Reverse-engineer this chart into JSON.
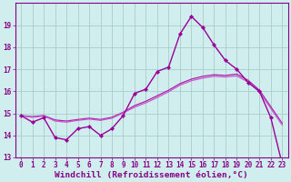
{
  "line1": {
    "x": [
      0,
      1,
      2,
      3,
      4,
      5,
      6,
      7,
      8,
      9,
      10,
      11,
      12,
      13,
      14,
      15,
      16,
      17,
      18,
      19,
      20,
      21,
      22,
      23
    ],
    "y": [
      14.9,
      14.6,
      14.8,
      13.9,
      13.8,
      14.3,
      14.4,
      14.0,
      14.3,
      14.9,
      15.9,
      16.1,
      16.9,
      17.1,
      18.6,
      19.4,
      18.9,
      18.1,
      17.4,
      17.0,
      16.4,
      16.0,
      14.8,
      12.7
    ],
    "color": "#990099",
    "lw": 1.0,
    "marker": "D",
    "ms": 2.2
  },
  "line2": {
    "x": [
      0,
      1,
      2,
      3,
      4,
      5,
      6,
      7,
      8,
      9,
      10,
      11,
      12,
      13,
      14,
      15,
      16,
      17,
      18,
      19,
      20,
      21,
      22,
      23
    ],
    "y": [
      14.9,
      14.85,
      14.9,
      14.7,
      14.65,
      14.72,
      14.78,
      14.72,
      14.82,
      15.05,
      15.35,
      15.55,
      15.8,
      16.05,
      16.35,
      16.55,
      16.68,
      16.75,
      16.72,
      16.78,
      16.5,
      16.05,
      15.3,
      14.55
    ],
    "color": "#aa22aa",
    "lw": 0.9
  },
  "line3": {
    "x": [
      0,
      1,
      2,
      3,
      4,
      5,
      6,
      7,
      8,
      9,
      10,
      11,
      12,
      13,
      14,
      15,
      16,
      17,
      18,
      19,
      20,
      21,
      22,
      23
    ],
    "y": [
      14.9,
      14.82,
      14.88,
      14.65,
      14.6,
      14.68,
      14.74,
      14.68,
      14.78,
      15.02,
      15.28,
      15.48,
      15.72,
      15.98,
      16.28,
      16.48,
      16.6,
      16.68,
      16.65,
      16.7,
      16.42,
      15.97,
      15.22,
      14.47
    ],
    "color": "#cc55cc",
    "lw": 0.9
  },
  "background_color": "#d0eeee",
  "grid_color": "#aacccc",
  "xlabel": "Windchill (Refroidissement éolien,°C)",
  "xlabel_color": "#880088",
  "tick_color": "#880088",
  "axis_color": "#880088",
  "ylim": [
    13,
    20
  ],
  "xlim": [
    -0.5,
    23.5
  ],
  "yticks": [
    13,
    14,
    15,
    16,
    17,
    18,
    19
  ],
  "xticks": [
    0,
    1,
    2,
    3,
    4,
    5,
    6,
    7,
    8,
    9,
    10,
    11,
    12,
    13,
    14,
    15,
    16,
    17,
    18,
    19,
    20,
    21,
    22,
    23
  ],
  "tick_fontsize": 5.5,
  "xlabel_fontsize": 6.8
}
